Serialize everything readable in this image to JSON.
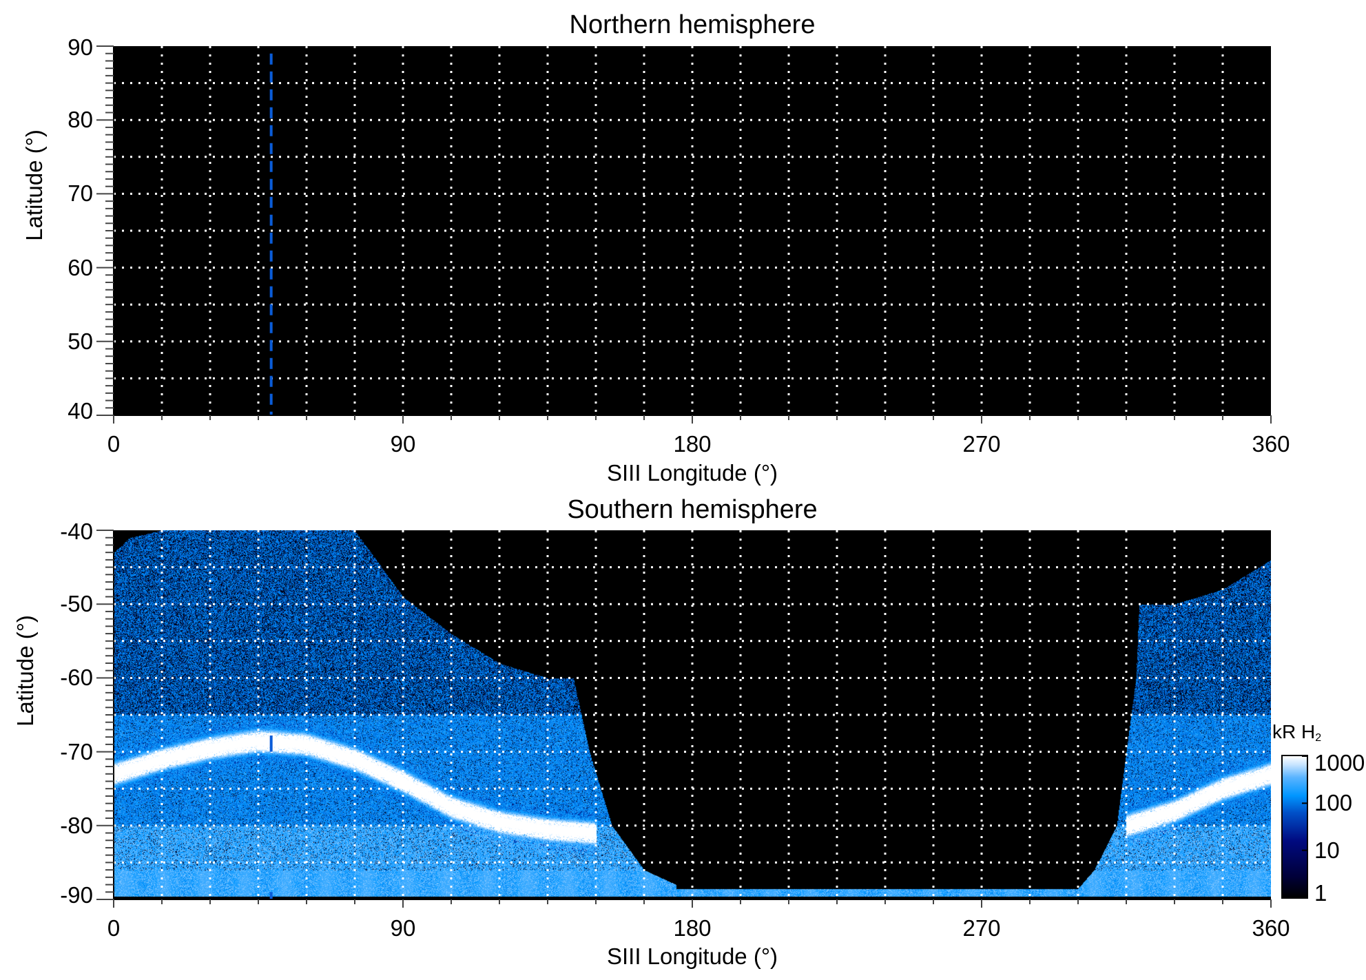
{
  "chart_data": [
    {
      "type": "heatmap",
      "title": "Northern hemisphere",
      "xlabel": "SIII Longitude (°)",
      "ylabel": "Latitude (°)",
      "xlim": [
        0,
        360
      ],
      "ylim": [
        40,
        90
      ],
      "xticks": [
        0,
        90,
        180,
        270,
        360
      ],
      "yticks": [
        40,
        50,
        60,
        70,
        80,
        90
      ],
      "x_grid_step": 15,
      "y_grid_step": 5,
      "grid": true,
      "background": "#000000",
      "marker_line": {
        "longitude": 49,
        "style": "dashed",
        "color": "#0a5cd8"
      },
      "emission": "none"
    },
    {
      "type": "heatmap",
      "title": "Southern hemisphere",
      "xlabel": "SIII Longitude (°)",
      "ylabel": "Latitude (°)",
      "xlim": [
        0,
        360
      ],
      "ylim": [
        -90,
        -40
      ],
      "xticks": [
        0,
        90,
        180,
        270,
        360
      ],
      "yticks": [
        -90,
        -80,
        -70,
        -60,
        -50,
        -40
      ],
      "x_grid_step": 15,
      "y_grid_step": 5,
      "grid": true,
      "marker_line": {
        "longitude": 49,
        "style": "dashed",
        "color": "#0a5cd8"
      },
      "main_oval": {
        "longitude": [
          0,
          15,
          30,
          45,
          60,
          75,
          90,
          105,
          120,
          135,
          150,
          315,
          330,
          345,
          360
        ],
        "latitude": [
          -73,
          -71,
          -69.5,
          -68.5,
          -69,
          -71,
          -74,
          -77.5,
          -79.5,
          -80.5,
          -81,
          -80,
          -78,
          -75,
          -73
        ],
        "brightness_kR": 1000
      },
      "data_boundary": {
        "longitude": [
          0,
          5,
          15,
          75,
          90,
          105,
          120,
          135,
          143,
          148,
          155,
          165,
          175,
          300,
          305,
          312,
          318,
          319,
          330,
          345,
          360
        ],
        "latitude": [
          -43,
          -41,
          -40,
          -40,
          -49,
          -54,
          -58,
          -60,
          -60,
          -70,
          -80,
          -86,
          -88,
          -88.5,
          -86,
          -80,
          -60,
          -50,
          -50,
          -48,
          -44
        ]
      },
      "colorbar": {
        "label": "kR H",
        "label_subscript": "2",
        "scale": "log",
        "range": [
          1,
          1000
        ],
        "ticks": [
          "1",
          "10",
          "100",
          "1000"
        ],
        "colors": [
          "#000000",
          "#000a80",
          "#0096ff",
          "#ffffff"
        ]
      }
    }
  ]
}
